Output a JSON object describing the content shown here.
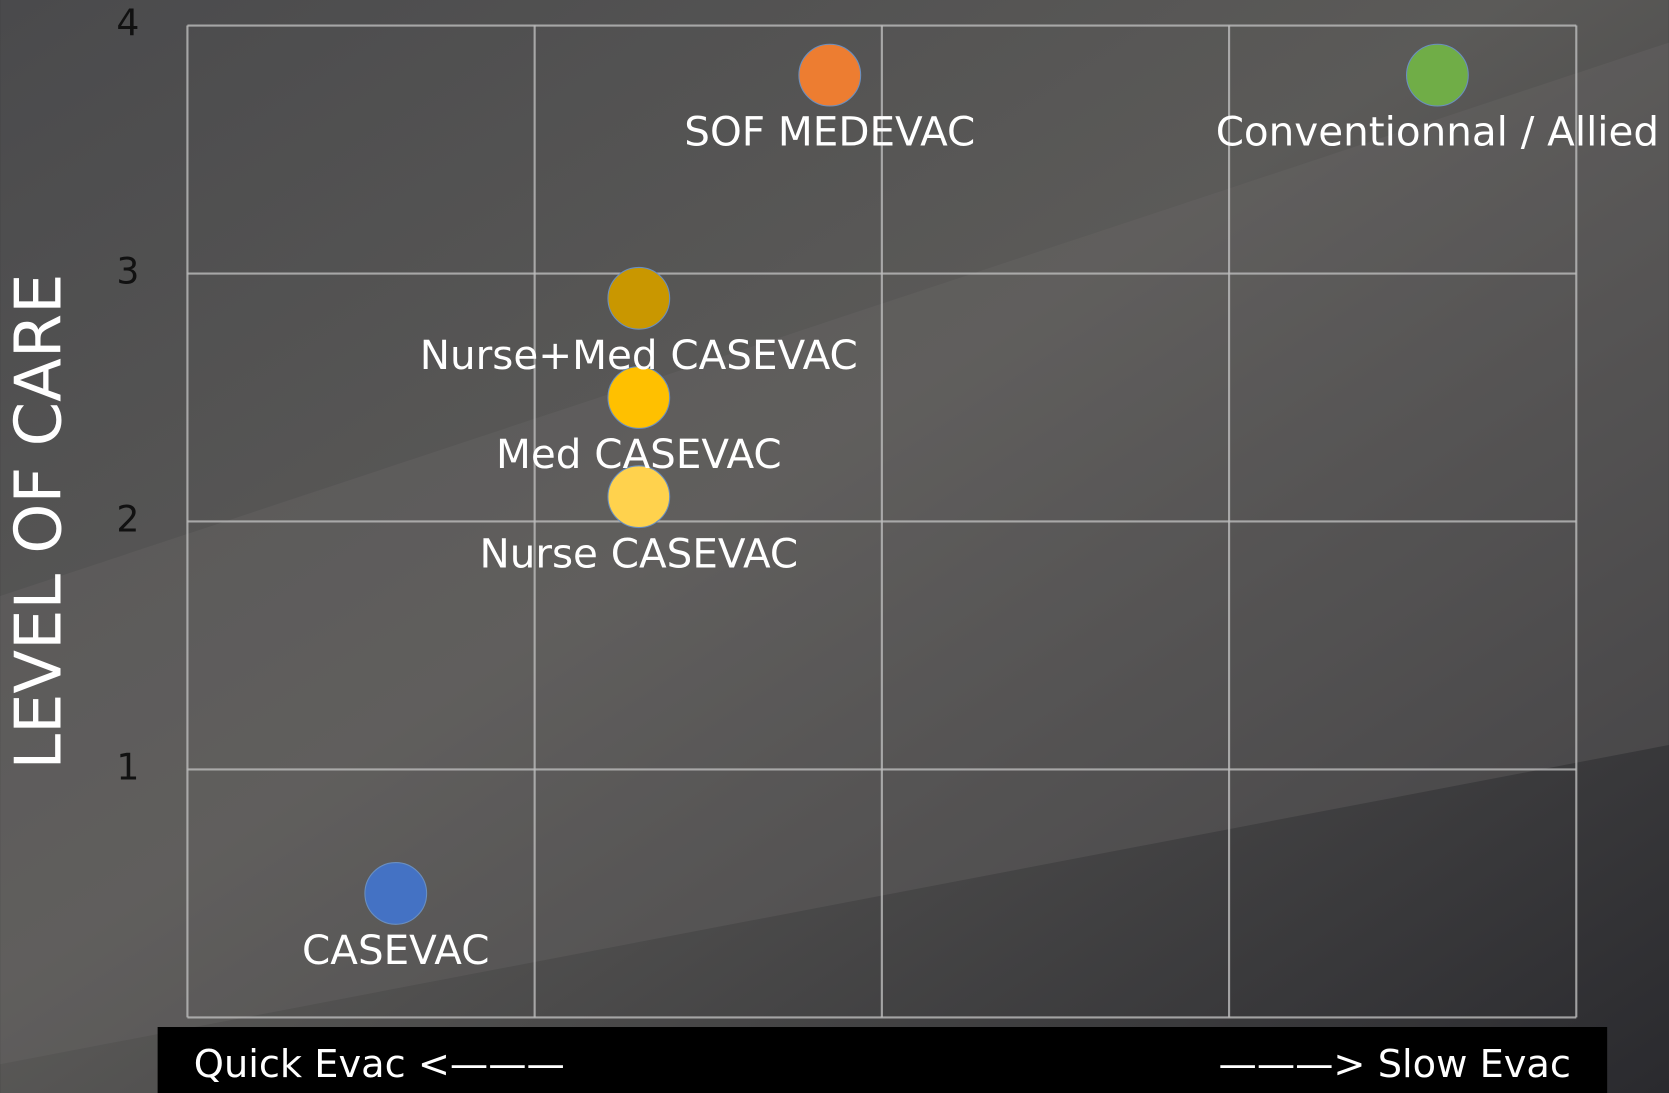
{
  "chart_data": {
    "type": "scatter",
    "y_label": "LEVEL OF CARE",
    "x_label_left": "Quick Evac <———",
    "x_label_right": "———> Slow Evac",
    "xlim": [
      0,
      4
    ],
    "ylim": [
      0,
      4
    ],
    "yticks": [
      1,
      2,
      3,
      4
    ],
    "grid": true,
    "series": [
      {
        "name": "CASEVAC",
        "color": "#4472c4",
        "x": [
          0.6
        ],
        "values": [
          0.5
        ]
      },
      {
        "name": "Nurse CASEVAC",
        "color": "#ffd24d",
        "x": [
          1.3
        ],
        "values": [
          2.1
        ]
      },
      {
        "name": "Med CASEVAC",
        "color": "#ffc000",
        "x": [
          1.3
        ],
        "values": [
          2.5
        ]
      },
      {
        "name": "Nurse+Med CASEVAC",
        "color": "#c99700",
        "x": [
          1.3
        ],
        "values": [
          2.9
        ]
      },
      {
        "name": "SOF MEDEVAC",
        "color": "#ed7d31",
        "x": [
          1.85
        ],
        "values": [
          3.8
        ]
      },
      {
        "name": "Conventionnal / Allied",
        "color": "#70ad47",
        "x": [
          3.6
        ],
        "values": [
          3.8
        ]
      }
    ]
  }
}
